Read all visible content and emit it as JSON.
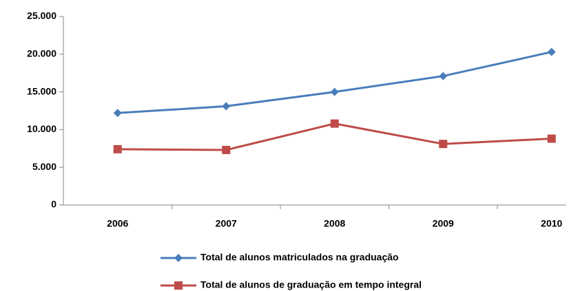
{
  "chart_data": {
    "type": "line",
    "categories": [
      "2006",
      "2007",
      "2008",
      "2009",
      "2010"
    ],
    "series": [
      {
        "name": "Total de alunos  matriculados na graduação",
        "color": "#4a7ebb",
        "marker": "diamond",
        "values": [
          12200,
          13100,
          15000,
          17100,
          20300
        ]
      },
      {
        "name": "Total de alunos de graduação em tempo integral",
        "color": "#be4b48",
        "marker": "square",
        "values": [
          7400,
          7300,
          10800,
          8100,
          8800
        ]
      }
    ],
    "ylim": [
      0,
      25000
    ],
    "yticks": [
      0,
      {
        "value": 5000,
        "label": "5.000"
      },
      {
        "value": 10000,
        "label": "10.000"
      },
      {
        "value": 15000,
        "label": "15.000"
      },
      {
        "value": 20000,
        "label": "20.000"
      },
      {
        "value": 25000,
        "label": "25.000"
      }
    ],
    "grid": false,
    "legend": "bottom"
  }
}
